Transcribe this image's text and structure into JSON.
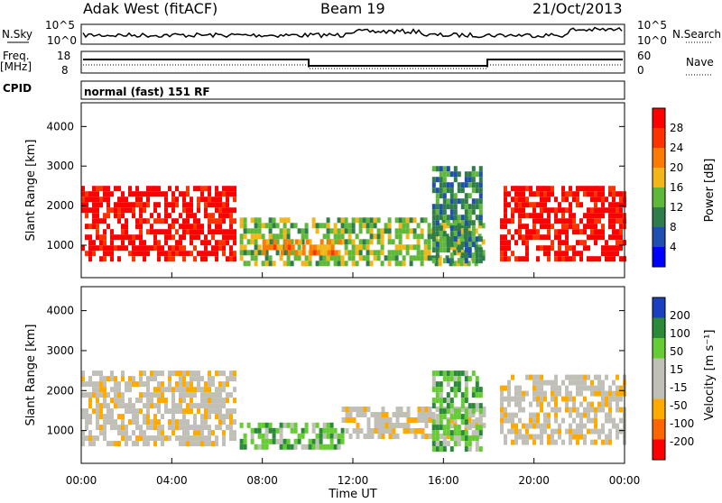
{
  "header": {
    "station": "Adak West (fitACF)",
    "beam": "Beam 19",
    "date": "21/Oct/2013"
  },
  "labels": {
    "nsky": "N.Sky",
    "nsearch": "N.Search",
    "freq": "Freq.",
    "mhz": "[MHz]",
    "nave": "Nave",
    "cpid": "CPID",
    "cpid_value": "normal (fast) 151 RF",
    "slant": "Slant Range [km]",
    "time": "Time UT",
    "power": "Power [dB]",
    "velocity": "Velocity [m s⁻¹]"
  },
  "noise_axis": {
    "left": [
      "10^5",
      "10^0"
    ],
    "right": [
      "10^5",
      "10^0"
    ]
  },
  "freq_axis": {
    "left": [
      "18",
      "8"
    ],
    "right": [
      "60",
      "0"
    ]
  },
  "time_ticks": [
    "00:00",
    "04:00",
    "08:00",
    "12:00",
    "16:00",
    "20:00",
    "00:00"
  ],
  "range_ticks": [
    "1000",
    "2000",
    "3000",
    "4000"
  ],
  "power_scale": [
    "28",
    "24",
    "20",
    "16",
    "12",
    "8",
    "4"
  ],
  "velocity_scale": [
    "200",
    "100",
    "50",
    "15",
    "-15",
    "-50",
    "-100",
    "-200"
  ],
  "colors": {
    "power": [
      "#0000ff",
      "#1f4fb0",
      "#2e7d4a",
      "#5fb83a",
      "#f2b61a",
      "#ff7a00",
      "#ff3300",
      "#ff0000"
    ],
    "velocity": [
      "#ff0000",
      "#ff6600",
      "#ffaa00",
      "#c0c0b8",
      "#c0c0b8",
      "#66cc33",
      "#2a8a3a",
      "#1a3fbf"
    ]
  },
  "chart_data": [
    {
      "type": "heatmap",
      "title": "Power",
      "xlabel": "Time UT",
      "ylabel": "Slant Range [km]",
      "xlim": [
        "00:00",
        "24:00"
      ],
      "ylim": [
        180,
        4600
      ],
      "colorbar": {
        "label": "Power [dB]",
        "ticks": [
          4,
          8,
          12,
          16,
          20,
          24,
          28
        ]
      },
      "regions": [
        {
          "t0": 0.0,
          "t1": 6.8,
          "r0": 700,
          "r1": 2500,
          "level": 7
        },
        {
          "t0": 7.0,
          "t1": 17.8,
          "r0": 600,
          "r1": 1700,
          "level": 3
        },
        {
          "t0": 8.0,
          "t1": 11.5,
          "r0": 800,
          "r1": 1150,
          "level": 5
        },
        {
          "t0": 15.5,
          "t1": 17.7,
          "r0": 600,
          "r1": 3000,
          "level": 2
        },
        {
          "t0": 18.5,
          "t1": 24.0,
          "r0": 700,
          "r1": 2500,
          "level": 7
        }
      ]
    },
    {
      "type": "heatmap",
      "title": "Velocity",
      "xlabel": "Time UT",
      "ylabel": "Slant Range [km]",
      "xlim": [
        "00:00",
        "24:00"
      ],
      "ylim": [
        180,
        4600
      ],
      "colorbar": {
        "label": "Velocity [m s⁻¹]",
        "ticks": [
          -200,
          -100,
          -50,
          -15,
          15,
          50,
          100,
          200
        ]
      },
      "regions": [
        {
          "t0": 0.0,
          "t1": 6.8,
          "r0": 700,
          "r1": 2500,
          "level": 3
        },
        {
          "t0": 7.0,
          "t1": 11.5,
          "r0": 600,
          "r1": 1200,
          "level": 5
        },
        {
          "t0": 11.5,
          "t1": 17.8,
          "r0": 800,
          "r1": 1600,
          "level": 3
        },
        {
          "t0": 15.5,
          "t1": 17.7,
          "r0": 600,
          "r1": 2500,
          "level": 5
        },
        {
          "t0": 18.5,
          "t1": 24.0,
          "r0": 700,
          "r1": 2400,
          "level": 3
        }
      ]
    }
  ]
}
